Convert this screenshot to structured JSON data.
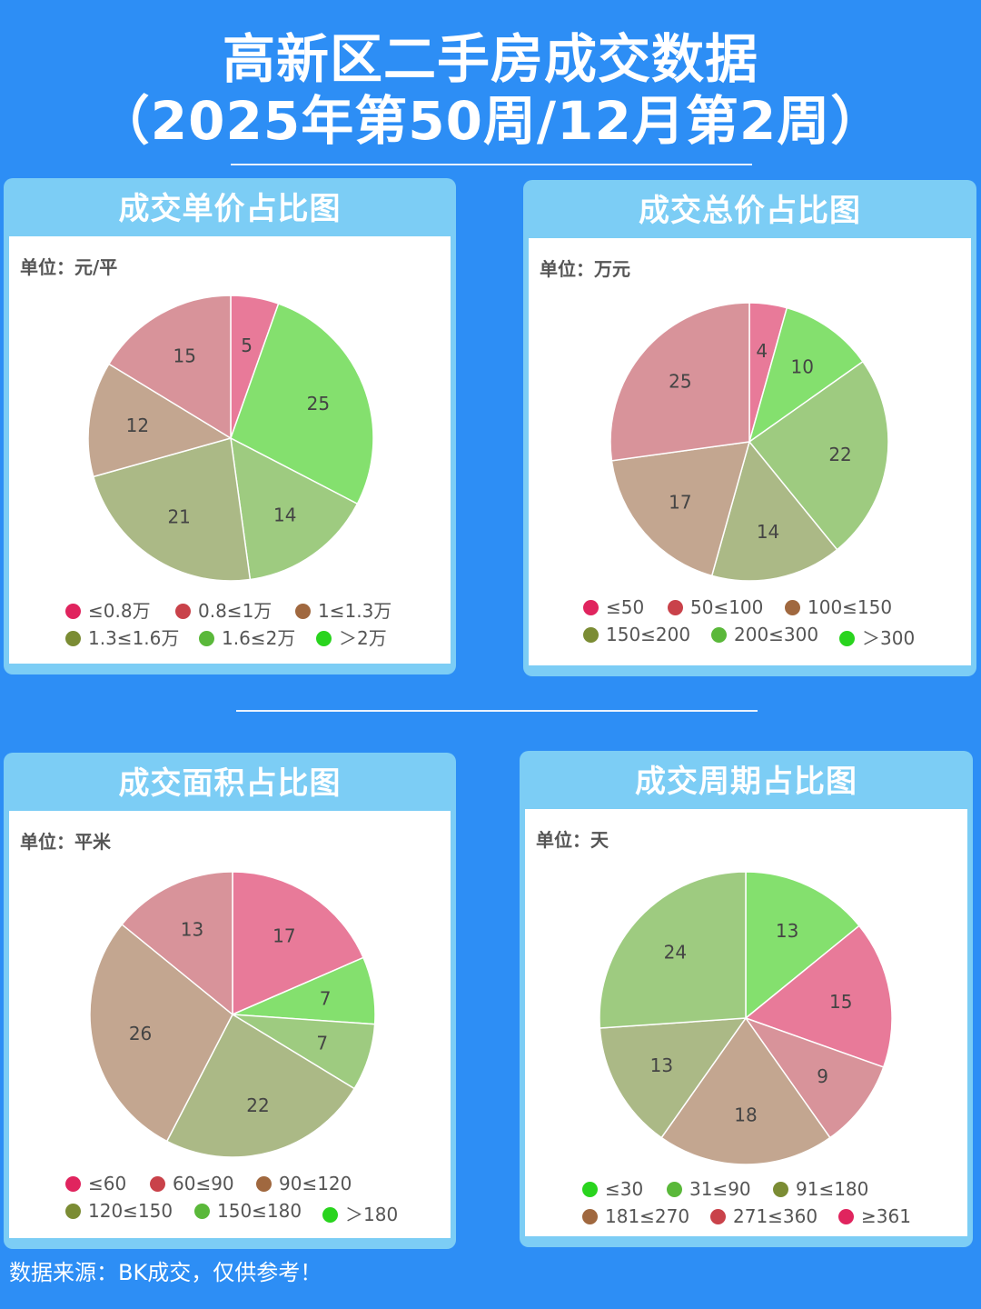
{
  "header": {
    "title_line1": "高新区二手房成交数据",
    "title_line2": "（2025年第50周/12月第2周）"
  },
  "charts": [
    {
      "title": "成交单价占比图",
      "unit_label": "单位：元/平",
      "legend": [
        {
          "label": "≤0.8万",
          "color": "#e0245e"
        },
        {
          "label": "0.8≤1万",
          "color": "#c9424a"
        },
        {
          "label": "1≤1.3万",
          "color": "#a0683f"
        },
        {
          "label": "1.3≤1.6万",
          "color": "#7b8c34"
        },
        {
          "label": "1.6≤2万",
          "color": "#5ab83a"
        },
        {
          "label": "＞2万",
          "color": "#29d41e"
        }
      ],
      "slices": [
        {
          "value": 5,
          "label": "5",
          "color": "#e87a99"
        },
        {
          "value": 25,
          "label": "25",
          "color": "#84e06e"
        },
        {
          "value": 14,
          "label": "14",
          "color": "#9ecb80"
        },
        {
          "value": 21,
          "label": "21",
          "color": "#abb986"
        },
        {
          "value": 12,
          "label": "12",
          "color": "#c3a690"
        },
        {
          "value": 15,
          "label": "15",
          "color": "#d8939a"
        }
      ]
    },
    {
      "title": "成交总价占比图",
      "unit_label": "单位：万元",
      "legend": [
        {
          "label": "≤50",
          "color": "#e0245e"
        },
        {
          "label": "50≤100",
          "color": "#c9424a"
        },
        {
          "label": "100≤150",
          "color": "#a0683f"
        },
        {
          "label": "150≤200",
          "color": "#7b8c34"
        },
        {
          "label": "200≤300",
          "color": "#5ab83a"
        },
        {
          "label": "＞300",
          "color": "#29d41e"
        }
      ],
      "slices": [
        {
          "value": 4,
          "label": "4",
          "color": "#e87a99"
        },
        {
          "value": 10,
          "label": "10",
          "color": "#84e06e"
        },
        {
          "value": 22,
          "label": "22",
          "color": "#9ecb80"
        },
        {
          "value": 14,
          "label": "14",
          "color": "#abb986"
        },
        {
          "value": 17,
          "label": "17",
          "color": "#c3a690"
        },
        {
          "value": 25,
          "label": "25",
          "color": "#d8939a"
        }
      ]
    },
    {
      "title": "成交面积占比图",
      "unit_label": "单位：平米",
      "legend": [
        {
          "label": "≤60",
          "color": "#e0245e"
        },
        {
          "label": "60≤90",
          "color": "#c9424a"
        },
        {
          "label": "90≤120",
          "color": "#a0683f"
        },
        {
          "label": "120≤150",
          "color": "#7b8c34"
        },
        {
          "label": "150≤180",
          "color": "#5ab83a"
        },
        {
          "label": "＞180",
          "color": "#29d41e"
        }
      ],
      "slices": [
        {
          "value": 17,
          "label": "17",
          "color": "#e87a99"
        },
        {
          "value": 7,
          "label": "7",
          "color": "#84e06e"
        },
        {
          "value": 7,
          "label": "7",
          "color": "#9ecb80"
        },
        {
          "value": 22,
          "label": "22",
          "color": "#abb986"
        },
        {
          "value": 26,
          "label": "26",
          "color": "#c3a690"
        },
        {
          "value": 13,
          "label": "13",
          "color": "#d8939a"
        }
      ]
    },
    {
      "title": "成交周期占比图",
      "unit_label": "单位：天",
      "legend": [
        {
          "label": "≤30",
          "color": "#29d41e"
        },
        {
          "label": "31≤90",
          "color": "#5ab83a"
        },
        {
          "label": "91≤180",
          "color": "#7b8c34"
        },
        {
          "label": "181≤270",
          "color": "#a0683f"
        },
        {
          "label": "271≤360",
          "color": "#c9424a"
        },
        {
          "label": "≥361",
          "color": "#e0245e"
        }
      ],
      "slices": [
        {
          "value": 13,
          "label": "13",
          "color": "#84e06e"
        },
        {
          "value": 15,
          "label": "15",
          "color": "#e87a99"
        },
        {
          "value": 9,
          "label": "9",
          "color": "#d8939a"
        },
        {
          "value": 18,
          "label": "18",
          "color": "#c3a690"
        },
        {
          "value": 13,
          "label": "13",
          "color": "#abb986"
        },
        {
          "value": 24,
          "label": "24",
          "color": "#9ecb80"
        }
      ]
    }
  ],
  "chart_data": [
    {
      "type": "pie",
      "title": "成交单价占比图",
      "unit": "元/平",
      "categories": [
        "≤0.8万",
        "1.6≤2万",
        "1.3≤1.6万",
        "1≤1.3万",
        "0.8≤1万",
        "＞2万"
      ],
      "values": [
        5,
        25,
        14,
        21,
        12,
        15
      ]
    },
    {
      "type": "pie",
      "title": "成交总价占比图",
      "unit": "万元",
      "values": [
        4,
        10,
        22,
        14,
        17,
        25
      ]
    },
    {
      "type": "pie",
      "title": "成交面积占比图",
      "unit": "平米",
      "values": [
        17,
        7,
        7,
        22,
        26,
        13
      ]
    },
    {
      "type": "pie",
      "title": "成交周期占比图",
      "unit": "天",
      "values": [
        13,
        15,
        9,
        18,
        13,
        24
      ]
    }
  ],
  "footer": {
    "source": "数据来源：BK成交，仅供参考！"
  }
}
